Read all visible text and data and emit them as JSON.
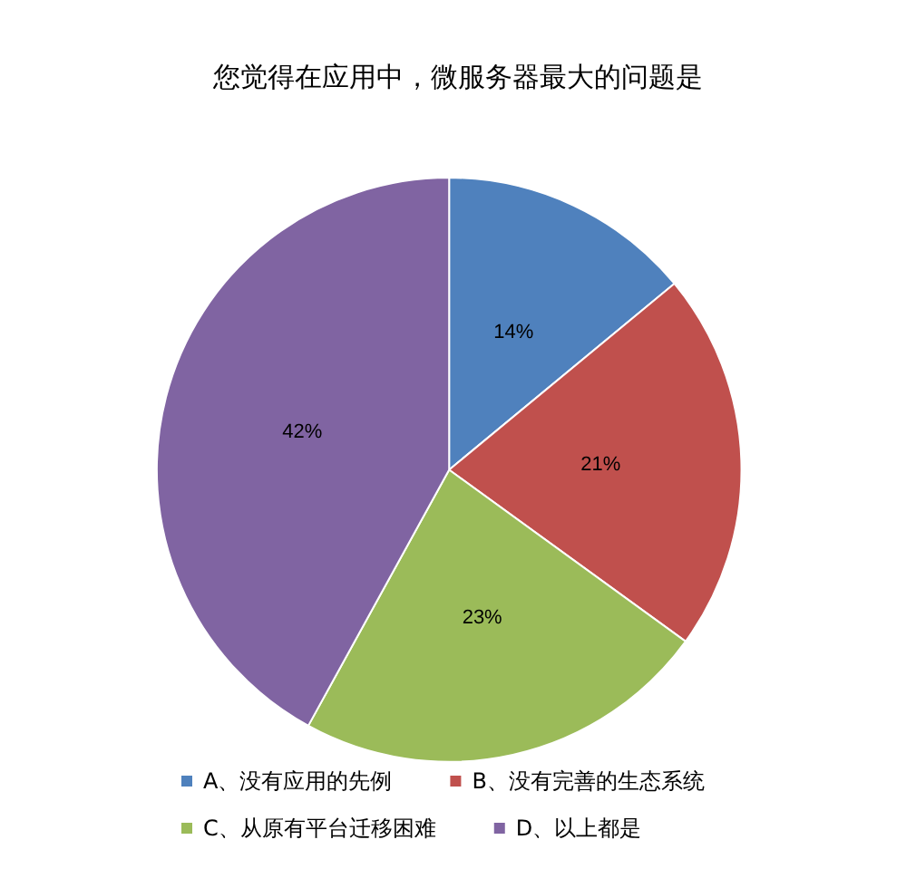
{
  "chart_data": {
    "type": "pie",
    "title": "您觉得在应用中，微服务器最大的问题是",
    "categories": [
      "A、没有应用的先例",
      "B、没有完善的生态系统",
      "C、从原有平台迁移困难",
      "D、以上都是"
    ],
    "values": [
      14,
      21,
      23,
      42
    ],
    "colors": [
      "#4f81bd",
      "#c0504d",
      "#9bbb59",
      "#8064a2"
    ],
    "value_labels": [
      "14%",
      "21%",
      "23%",
      "42%"
    ],
    "legend": "bottom"
  }
}
